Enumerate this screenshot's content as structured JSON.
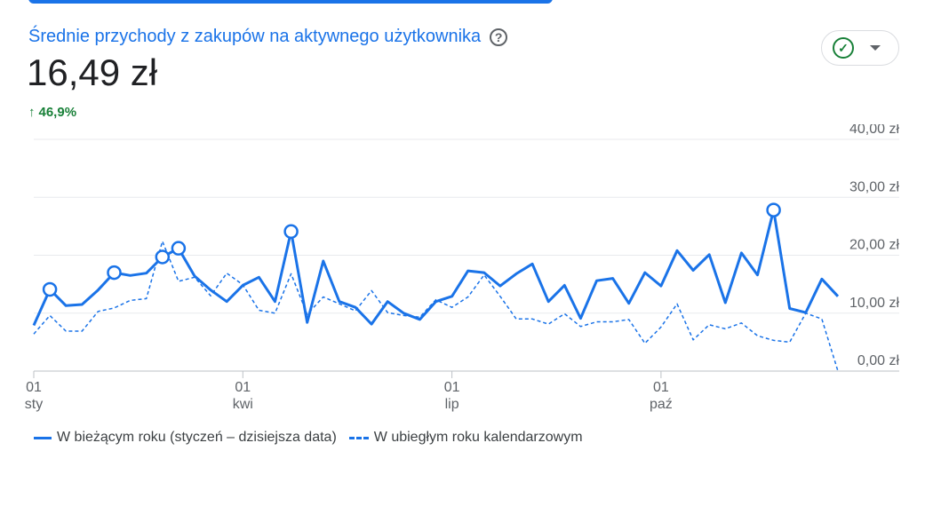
{
  "card": {
    "title": "Średnie przychody z zakupów na aktywnego użytkownika",
    "value": "16,49 zł",
    "change": "46,9%",
    "change_icon": "arrow-up-icon",
    "status_icon": "check-circle-icon",
    "dropdown_icon": "caret-down-icon"
  },
  "colors": {
    "accent": "#1a73e8",
    "positive": "#188038",
    "grid": "#e8eaed"
  },
  "chart_data": {
    "type": "line",
    "y_ticks": [
      "0,00 zł",
      "10,00 zł",
      "20,00 zł",
      "30,00 zł",
      "40,00 zł"
    ],
    "ylim": [
      0,
      40
    ],
    "x_ticks": [
      {
        "day": "01",
        "month": "sty",
        "week": 0
      },
      {
        "day": "01",
        "month": "kwi",
        "week": 13
      },
      {
        "day": "01",
        "month": "lip",
        "week": 26
      },
      {
        "day": "01",
        "month": "paź",
        "week": 39
      }
    ],
    "grid": true,
    "legend_position": "bottom-left",
    "series": [
      {
        "name": "W bieżącym roku (styczeń – dzisiejsza data)",
        "style": "solid",
        "values": [
          7.9,
          14.1,
          11.3,
          11.5,
          14.0,
          17.0,
          16.5,
          16.9,
          19.7,
          21.2,
          16.4,
          14.0,
          12.0,
          14.8,
          16.2,
          12.0,
          24.1,
          8.4,
          19.0,
          12.0,
          11.0,
          8.1,
          12.0,
          10.0,
          8.9,
          12.0,
          12.9,
          17.3,
          17.0,
          14.7,
          16.8,
          18.5,
          12.0,
          14.8,
          9.1,
          15.6,
          16.0,
          11.7,
          17.0,
          14.7,
          20.8,
          17.4,
          20.1,
          11.8,
          20.4,
          16.6,
          27.8,
          10.8,
          10.1,
          15.9,
          12.9
        ],
        "markers": [
          1,
          5,
          8,
          9,
          16,
          46
        ]
      },
      {
        "name": "W ubiegłym roku kalendarzowym",
        "style": "dashed",
        "values": [
          6.4,
          9.6,
          6.9,
          6.9,
          10.3,
          10.9,
          12.2,
          12.5,
          22.4,
          15.5,
          16.2,
          13.0,
          16.9,
          14.9,
          10.5,
          10.0,
          16.8,
          9.8,
          12.8,
          11.6,
          10.4,
          13.9,
          10.1,
          9.6,
          9.3,
          12.3,
          11.0,
          12.8,
          16.6,
          12.9,
          9.0,
          9.0,
          8.1,
          9.9,
          7.7,
          8.5,
          8.5,
          8.9,
          4.8,
          7.6,
          11.6,
          5.4,
          8.0,
          7.3,
          8.3,
          6.1,
          5.3,
          5.0,
          10.0,
          9.0,
          0.0
        ]
      }
    ]
  }
}
